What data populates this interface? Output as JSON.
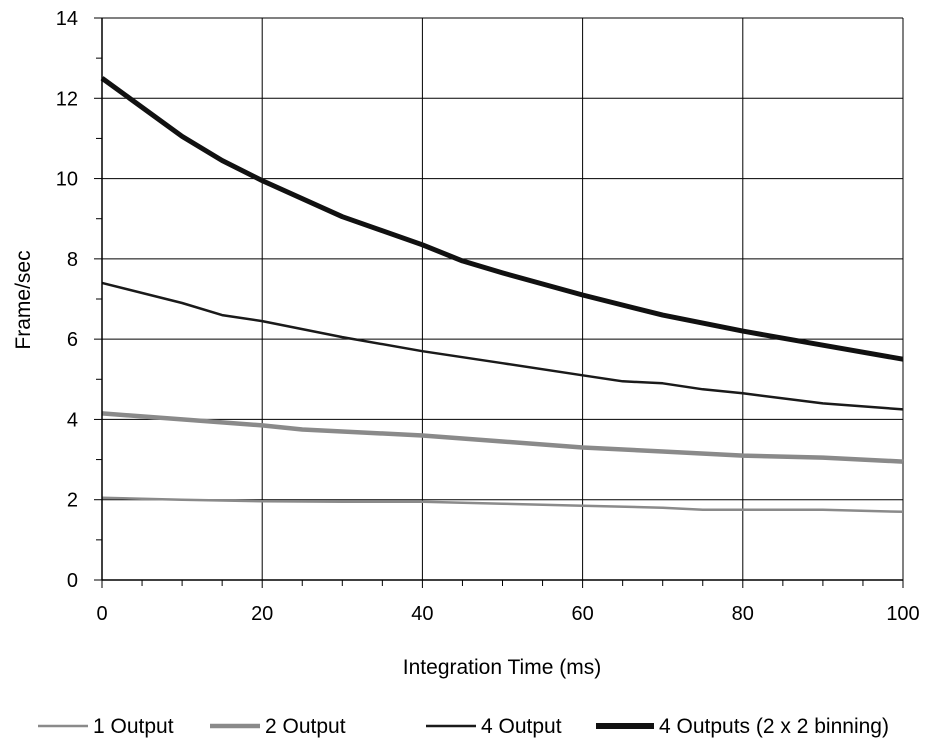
{
  "chart_data": {
    "type": "line",
    "title": "",
    "xlabel": "Integration Time (ms)",
    "ylabel": "Frame/sec",
    "xlim": [
      0,
      100
    ],
    "ylim": [
      0,
      14
    ],
    "xticks": [
      0,
      20,
      40,
      60,
      80,
      100
    ],
    "yticks": [
      0,
      2,
      4,
      6,
      8,
      10,
      12,
      14
    ],
    "x_tick_labels": [
      "0",
      "20",
      "40",
      "60",
      "80",
      "100"
    ],
    "y_tick_labels": [
      "0",
      "2",
      "4",
      "6",
      "8",
      "10",
      "12",
      "14"
    ],
    "grid": true,
    "legend_position": "bottom",
    "series": [
      {
        "name": "1 Output",
        "color": "#8a8a8a",
        "style": "thin",
        "x": [
          0,
          10,
          20,
          30,
          40,
          50,
          60,
          70,
          75,
          80,
          90,
          100
        ],
        "y": [
          2.05,
          2.0,
          1.96,
          1.95,
          1.95,
          1.9,
          1.85,
          1.8,
          1.75,
          1.75,
          1.75,
          1.7
        ]
      },
      {
        "name": "2 Output",
        "color": "#8a8a8a",
        "style": "thick",
        "x": [
          0,
          10,
          20,
          25,
          30,
          40,
          50,
          60,
          70,
          80,
          90,
          100
        ],
        "y": [
          4.15,
          4.0,
          3.85,
          3.75,
          3.7,
          3.6,
          3.45,
          3.3,
          3.2,
          3.1,
          3.05,
          2.95
        ]
      },
      {
        "name": "4 Output",
        "color": "#1a1a1a",
        "style": "thin",
        "x": [
          0,
          10,
          15,
          20,
          30,
          40,
          50,
          60,
          65,
          70,
          75,
          80,
          90,
          100
        ],
        "y": [
          7.4,
          6.9,
          6.6,
          6.45,
          6.05,
          5.7,
          5.4,
          5.1,
          4.95,
          4.9,
          4.75,
          4.65,
          4.4,
          4.25
        ]
      },
      {
        "name": "4 Outputs (2 x 2 binning)",
        "color": "#111111",
        "style": "heavy",
        "x": [
          0,
          10,
          15,
          20,
          30,
          40,
          45,
          50,
          60,
          70,
          80,
          90,
          100
        ],
        "y": [
          12.5,
          11.05,
          10.45,
          9.95,
          9.05,
          8.35,
          7.95,
          7.65,
          7.1,
          6.6,
          6.2,
          5.85,
          5.5
        ]
      }
    ]
  }
}
